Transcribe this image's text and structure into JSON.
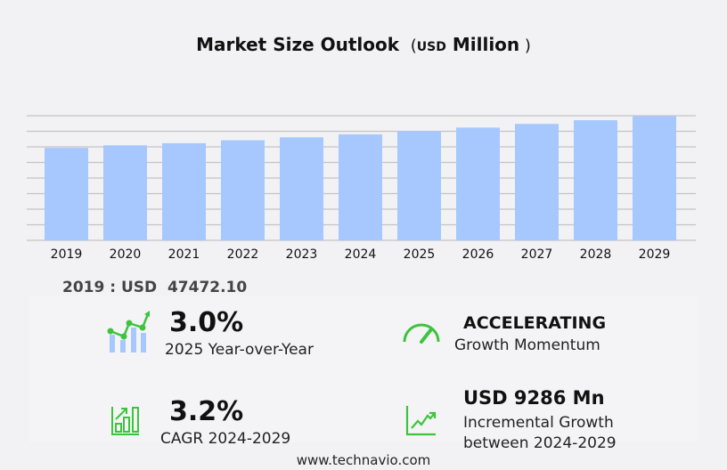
{
  "chart_data": {
    "type": "bar",
    "title": "Market Size Outlook",
    "title_unit_prefix": "USD",
    "title_unit": "Million",
    "categories": [
      "2019",
      "2020",
      "2021",
      "2022",
      "2023",
      "2024",
      "2025",
      "2026",
      "2027",
      "2028",
      "2029"
    ],
    "values": [
      47472.1,
      48800,
      49900,
      51400,
      52900,
      54431,
      56064,
      57900,
      59800,
      61700,
      63717
    ],
    "ylim": [
      0,
      64000
    ],
    "grid": true,
    "bar_color": "#a6c8fe",
    "xlabel": "",
    "ylabel": ""
  },
  "base_year": {
    "label": "2019 : USD",
    "value": "47472.10"
  },
  "stats": [
    {
      "value": "3.0%",
      "label": "2025 Year-over-Year",
      "icon": "growth-chart-icon"
    },
    {
      "value": "ACCELERATING",
      "label": "Growth Momentum",
      "icon": "speedometer-icon"
    },
    {
      "value": "3.2%",
      "label": "CAGR 2024-2029",
      "icon": "bar-chart-arrow-icon"
    },
    {
      "value": "USD 9286 Mn",
      "label": "Incremental Growth",
      "label2": "between 2024-2029",
      "icon": "line-trend-icon"
    }
  ],
  "footer": "www.technavio.com",
  "accent": "#3dc43d"
}
